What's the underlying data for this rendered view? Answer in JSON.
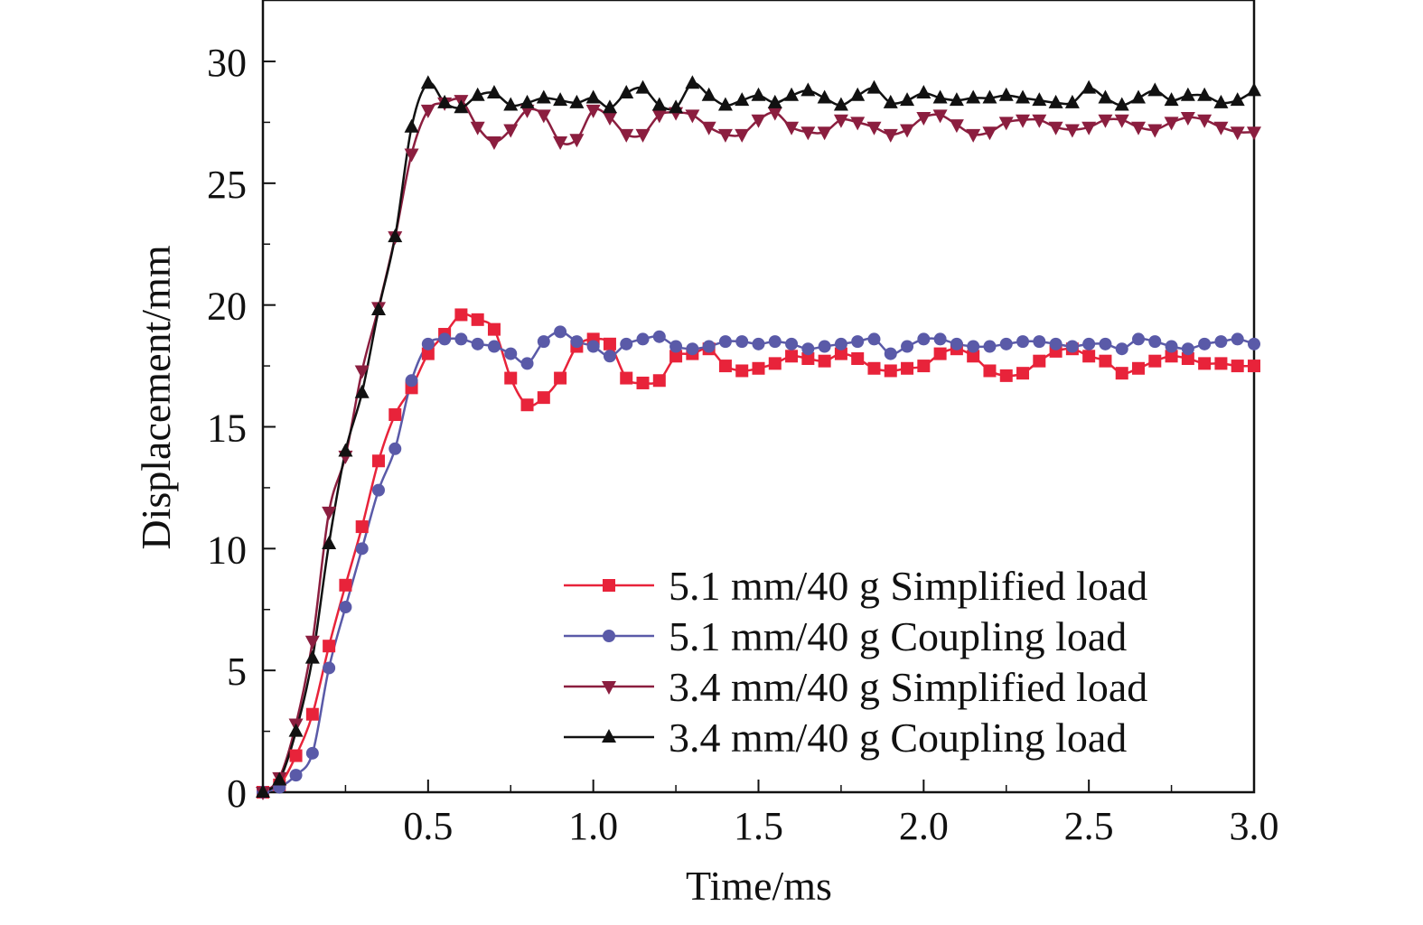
{
  "chart_data": {
    "type": "line",
    "title": "",
    "xlabel": "Time/ms",
    "ylabel": "Displacement/mm",
    "xlim": [
      0,
      3.0
    ],
    "ylim": [
      0,
      32
    ],
    "xticks": [
      "0.5",
      "1.0",
      "1.5",
      "2.0",
      "2.5",
      "3.0"
    ],
    "yticks": [
      "0",
      "5",
      "10",
      "15",
      "20",
      "25",
      "30"
    ],
    "grid": false,
    "legend_position": "bottom-right",
    "series": [
      {
        "name": "5.1 mm/40 g Simplified load",
        "color": "#e8233a",
        "marker": "square",
        "x": [
          0,
          0.05,
          0.1,
          0.15,
          0.2,
          0.25,
          0.3,
          0.35,
          0.4,
          0.45,
          0.5,
          0.55,
          0.6,
          0.65,
          0.7,
          0.75,
          0.8,
          0.85,
          0.9,
          0.95,
          1.0,
          1.05,
          1.1,
          1.15,
          1.2,
          1.25,
          1.3,
          1.35,
          1.4,
          1.45,
          1.5,
          1.55,
          1.6,
          1.65,
          1.7,
          1.75,
          1.8,
          1.85,
          1.9,
          1.95,
          2.0,
          2.05,
          2.1,
          2.15,
          2.2,
          2.25,
          2.3,
          2.35,
          2.4,
          2.45,
          2.5,
          2.55,
          2.6,
          2.65,
          2.7,
          2.75,
          2.8,
          2.85,
          2.9,
          2.95,
          3.0
        ],
        "y": [
          0,
          0.3,
          1.5,
          3.2,
          6.0,
          8.5,
          10.9,
          13.6,
          15.5,
          16.6,
          18.0,
          18.8,
          19.6,
          19.4,
          19.0,
          17.0,
          15.9,
          16.2,
          17.0,
          18.3,
          18.6,
          18.4,
          17.0,
          16.8,
          16.9,
          17.9,
          18.0,
          18.2,
          17.5,
          17.3,
          17.4,
          17.6,
          17.9,
          17.8,
          17.7,
          18.0,
          17.8,
          17.4,
          17.3,
          17.4,
          17.5,
          18.0,
          18.2,
          17.9,
          17.3,
          17.1,
          17.2,
          17.7,
          18.1,
          18.2,
          17.9,
          17.7,
          17.2,
          17.4,
          17.7,
          17.9,
          17.8,
          17.6,
          17.6,
          17.5,
          17.5
        ]
      },
      {
        "name": "5.1 mm/40 g Coupling load",
        "color": "#5a5aa8",
        "marker": "circle",
        "x": [
          0,
          0.05,
          0.1,
          0.15,
          0.2,
          0.25,
          0.3,
          0.35,
          0.4,
          0.45,
          0.5,
          0.55,
          0.6,
          0.65,
          0.7,
          0.75,
          0.8,
          0.85,
          0.9,
          0.95,
          1.0,
          1.05,
          1.1,
          1.15,
          1.2,
          1.25,
          1.3,
          1.35,
          1.4,
          1.45,
          1.5,
          1.55,
          1.6,
          1.65,
          1.7,
          1.75,
          1.8,
          1.85,
          1.9,
          1.95,
          2.0,
          2.05,
          2.1,
          2.15,
          2.2,
          2.25,
          2.3,
          2.35,
          2.4,
          2.45,
          2.5,
          2.55,
          2.6,
          2.65,
          2.7,
          2.75,
          2.8,
          2.85,
          2.9,
          2.95,
          3.0
        ],
        "y": [
          0,
          0.2,
          0.7,
          1.6,
          5.1,
          7.6,
          10.0,
          12.4,
          14.1,
          16.9,
          18.4,
          18.6,
          18.6,
          18.4,
          18.3,
          18.0,
          17.6,
          18.5,
          18.9,
          18.5,
          18.3,
          17.9,
          18.4,
          18.6,
          18.7,
          18.3,
          18.2,
          18.3,
          18.5,
          18.5,
          18.4,
          18.5,
          18.4,
          18.2,
          18.3,
          18.4,
          18.5,
          18.6,
          18.0,
          18.3,
          18.6,
          18.6,
          18.4,
          18.3,
          18.3,
          18.4,
          18.5,
          18.5,
          18.4,
          18.3,
          18.4,
          18.4,
          18.2,
          18.6,
          18.5,
          18.3,
          18.2,
          18.4,
          18.5,
          18.6,
          18.4
        ]
      },
      {
        "name": "3.4 mm/40 g Simplified load",
        "color": "#8b1e3f",
        "marker": "triangle-down",
        "x": [
          0,
          0.05,
          0.1,
          0.15,
          0.2,
          0.25,
          0.3,
          0.35,
          0.4,
          0.45,
          0.5,
          0.55,
          0.6,
          0.65,
          0.7,
          0.75,
          0.8,
          0.85,
          0.9,
          0.95,
          1.0,
          1.05,
          1.1,
          1.15,
          1.2,
          1.25,
          1.3,
          1.35,
          1.4,
          1.45,
          1.5,
          1.55,
          1.6,
          1.65,
          1.7,
          1.75,
          1.8,
          1.85,
          1.9,
          1.95,
          2.0,
          2.05,
          2.1,
          2.15,
          2.2,
          2.25,
          2.3,
          2.35,
          2.4,
          2.45,
          2.5,
          2.55,
          2.6,
          2.65,
          2.7,
          2.75,
          2.8,
          2.85,
          2.9,
          2.95,
          3.0
        ],
        "y": [
          0,
          0.6,
          2.8,
          6.2,
          11.5,
          13.8,
          17.3,
          19.9,
          22.8,
          26.2,
          28.0,
          28.3,
          28.4,
          27.3,
          26.7,
          27.2,
          28.0,
          27.8,
          26.7,
          26.8,
          28.0,
          27.7,
          27.0,
          27.0,
          27.8,
          27.9,
          27.8,
          27.3,
          27.0,
          27.0,
          27.6,
          27.9,
          27.3,
          27.1,
          27.1,
          27.6,
          27.5,
          27.3,
          27.0,
          27.2,
          27.7,
          27.8,
          27.4,
          27.0,
          27.1,
          27.5,
          27.6,
          27.6,
          27.3,
          27.2,
          27.3,
          27.6,
          27.6,
          27.3,
          27.2,
          27.5,
          27.7,
          27.6,
          27.3,
          27.1,
          27.1
        ]
      },
      {
        "name": "3.4 mm/40 g Coupling load",
        "color": "#111111",
        "marker": "triangle-up",
        "x": [
          0,
          0.05,
          0.1,
          0.15,
          0.2,
          0.25,
          0.3,
          0.35,
          0.4,
          0.45,
          0.5,
          0.55,
          0.6,
          0.65,
          0.7,
          0.75,
          0.8,
          0.85,
          0.9,
          0.95,
          1.0,
          1.05,
          1.1,
          1.15,
          1.2,
          1.25,
          1.3,
          1.35,
          1.4,
          1.45,
          1.5,
          1.55,
          1.6,
          1.65,
          1.7,
          1.75,
          1.8,
          1.85,
          1.9,
          1.95,
          2.0,
          2.05,
          2.1,
          2.15,
          2.2,
          2.25,
          2.3,
          2.35,
          2.4,
          2.45,
          2.5,
          2.55,
          2.6,
          2.65,
          2.7,
          2.75,
          2.8,
          2.85,
          2.9,
          2.95,
          3.0
        ],
        "y": [
          0,
          0.5,
          2.5,
          5.5,
          10.2,
          14.0,
          16.4,
          19.8,
          22.8,
          27.3,
          29.1,
          28.3,
          28.1,
          28.6,
          28.7,
          28.2,
          28.3,
          28.5,
          28.4,
          28.3,
          28.5,
          28.1,
          28.7,
          28.9,
          28.2,
          28.1,
          29.1,
          28.6,
          28.2,
          28.4,
          28.6,
          28.3,
          28.6,
          28.8,
          28.5,
          28.2,
          28.6,
          28.9,
          28.3,
          28.4,
          28.7,
          28.5,
          28.4,
          28.5,
          28.5,
          28.6,
          28.5,
          28.4,
          28.3,
          28.3,
          28.9,
          28.5,
          28.2,
          28.5,
          28.8,
          28.4,
          28.6,
          28.6,
          28.3,
          28.4,
          28.8
        ]
      }
    ]
  }
}
